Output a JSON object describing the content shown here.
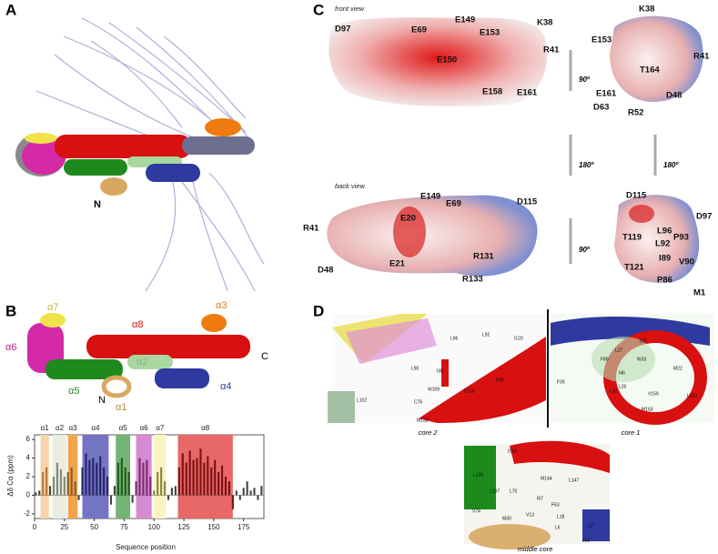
{
  "panels": {
    "a": {
      "label": "A",
      "n_label": "N"
    },
    "b": {
      "label": "B",
      "helix_labels": [
        "α1",
        "α2",
        "α3",
        "α4",
        "α5",
        "α6",
        "α7",
        "α8"
      ],
      "n_label": "N",
      "c_label": "C"
    },
    "c": {
      "label": "C",
      "front_view": "front view",
      "back_view": "back view",
      "rot90": "90º",
      "rot180": "180º",
      "front_left": [
        "D97",
        "E69",
        "E149",
        "E153",
        "K38",
        "E150",
        "R41",
        "E158",
        "E161"
      ],
      "front_right": [
        "K38",
        "E153",
        "R41",
        "T164",
        "E161",
        "D48",
        "D63",
        "R52"
      ],
      "back_left": [
        "E149",
        "E69",
        "D115",
        "E20",
        "R41",
        "R131",
        "E21",
        "D48",
        "R133"
      ],
      "back_right": [
        "D115",
        "L96",
        "D97",
        "T119",
        "P93",
        "L92",
        "I89",
        "V90",
        "T121",
        "P86",
        "M1"
      ]
    },
    "d": {
      "label": "D",
      "core2": "core 2",
      "core1": "core 1",
      "middle": "middle core",
      "core2_residues": [
        "L96",
        "L92",
        "I120",
        "L90",
        "I95",
        "W109",
        "F128",
        "F88",
        "L102",
        "C76",
        "M132"
      ],
      "core1_residues": [
        "L27",
        "I23",
        "F86",
        "I46",
        "W33",
        "M22",
        "L26",
        "L32",
        "F35",
        "L153",
        "V159",
        "M163"
      ],
      "middle_residues": [
        "I143",
        "L136",
        "M144",
        "L147",
        "L137",
        "L70",
        "I67",
        "F63",
        "L18",
        "V74",
        "M30",
        "V13",
        "L6",
        "L57",
        "L61"
      ]
    }
  },
  "chart_data": {
    "type": "bar",
    "y_label": "Δδ Cα (ppm)",
    "x_label": "Sequence position",
    "x": [
      1,
      4,
      7,
      10,
      13,
      16,
      19,
      22,
      25,
      28,
      31,
      34,
      37,
      40,
      43,
      46,
      49,
      52,
      55,
      58,
      61,
      64,
      67,
      70,
      73,
      76,
      79,
      82,
      85,
      88,
      91,
      94,
      97,
      100,
      103,
      106,
      109,
      112,
      115,
      118,
      121,
      124,
      127,
      130,
      133,
      136,
      139,
      142,
      145,
      148,
      151,
      154,
      157,
      160,
      163,
      166,
      169,
      172,
      175,
      178,
      181,
      184,
      187,
      190
    ],
    "values": [
      0.3,
      0.5,
      2.5,
      3.0,
      1.0,
      2.0,
      3.5,
      2.8,
      2.0,
      2.5,
      3.0,
      1.5,
      -0.5,
      3.0,
      4.5,
      3.8,
      4.0,
      3.5,
      4.2,
      3.0,
      2.0,
      -1.0,
      1.0,
      3.5,
      4.0,
      3.0,
      2.5,
      -0.8,
      1.5,
      4.0,
      3.5,
      3.8,
      2.0,
      0.5,
      2.5,
      3.0,
      1.5,
      -0.5,
      0.8,
      1.0,
      3.0,
      4.5,
      3.5,
      4.8,
      3.8,
      4.0,
      5.0,
      3.5,
      4.2,
      3.0,
      3.8,
      2.5,
      3.2,
      2.0,
      1.5,
      -1.5,
      0.5,
      -0.5,
      0.8,
      1.5,
      0.5,
      0.8,
      -0.5,
      1.0
    ],
    "color": "#444444",
    "helices": [
      {
        "name": "α1",
        "start": 5,
        "end": 12,
        "color": "#f8d2a8",
        "bar_color": "#b07830"
      },
      {
        "name": "α2",
        "start": 15,
        "end": 27,
        "color": "#e9eee0",
        "bar_color": "#808878"
      },
      {
        "name": "α3",
        "start": 28,
        "end": 36,
        "color": "#f2a44a",
        "bar_color": "#8a5a20"
      },
      {
        "name": "α4",
        "start": 40,
        "end": 62,
        "color": "#7474c4",
        "bar_color": "#26266a"
      },
      {
        "name": "α5",
        "start": 68,
        "end": 80,
        "color": "#74b474",
        "bar_color": "#1d5a1d"
      },
      {
        "name": "α6",
        "start": 85,
        "end": 98,
        "color": "#d88ad0",
        "bar_color": "#7a2a70"
      },
      {
        "name": "α7",
        "start": 100,
        "end": 110,
        "color": "#fbf4c0",
        "bar_color": "#8a8240"
      },
      {
        "name": "α8",
        "start": 120,
        "end": 166,
        "color": "#e86868",
        "bar_color": "#7a1010"
      }
    ],
    "xlim": [
      0,
      192
    ],
    "ylim": [
      -2.5,
      6.5
    ],
    "xticks": [
      0,
      25,
      50,
      75,
      100,
      125,
      150,
      175
    ],
    "yticks": [
      -2,
      0,
      2,
      4,
      6
    ]
  }
}
